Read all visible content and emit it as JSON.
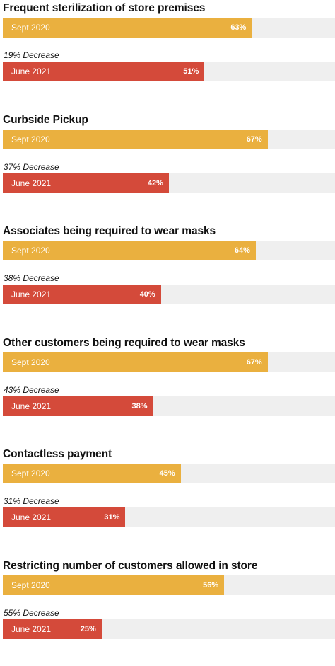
{
  "colors": {
    "sept_2020": "#eab03f",
    "june_2021": "#d44a3a",
    "track": "#efefef"
  },
  "chart_data": {
    "type": "bar",
    "orientation": "horizontal",
    "xlim": [
      0,
      100
    ],
    "unit": "%",
    "categories": [
      "Frequent sterilization of store premises",
      "Curbside Pickup",
      "Associates being required to wear masks",
      "Other customers being required to wear masks",
      "Contactless payment",
      "Restricting number of customers allowed in store"
    ],
    "series": [
      {
        "name": "Sept 2020",
        "values": [
          63,
          67,
          64,
          67,
          45,
          56
        ]
      },
      {
        "name": "June 2021",
        "values": [
          51,
          42,
          40,
          38,
          31,
          25
        ]
      }
    ],
    "annotations": [
      "19% Decrease",
      "37% Decrease",
      "38% Decrease",
      "43% Decrease",
      "31% Decrease",
      "55% Decrease"
    ]
  }
}
